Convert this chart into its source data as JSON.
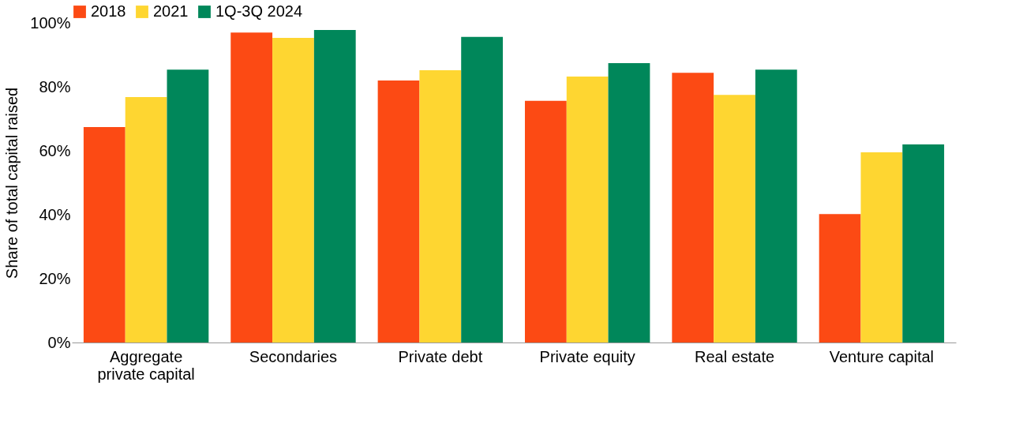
{
  "chart_data": {
    "type": "bar",
    "ylabel": "Share of total capital raised",
    "categories": [
      "Aggregate private capital",
      "Secondaries",
      "Private debt",
      "Private equity",
      "Real estate",
      "Venture capital"
    ],
    "series": [
      {
        "name": "2018",
        "color": "#fc4a14",
        "values": [
          67.4,
          97.0,
          82.0,
          75.6,
          84.4,
          40.2
        ]
      },
      {
        "name": "2021",
        "color": "#fed631",
        "values": [
          76.8,
          95.3,
          85.2,
          83.2,
          77.5,
          59.5
        ]
      },
      {
        "name": "1Q-3Q 2024",
        "color": "#00875a",
        "values": [
          85.4,
          97.8,
          95.6,
          87.4,
          85.4,
          62.0
        ]
      }
    ],
    "ylim": [
      0,
      100
    ],
    "yticks": [
      {
        "value": 0,
        "label": "0%"
      },
      {
        "value": 20,
        "label": "20%"
      },
      {
        "value": 40,
        "label": "40%"
      },
      {
        "value": 60,
        "label": "60%"
      },
      {
        "value": 80,
        "label": "80%"
      },
      {
        "value": 100,
        "label": "100%"
      }
    ],
    "grid": false,
    "legend": "top"
  }
}
